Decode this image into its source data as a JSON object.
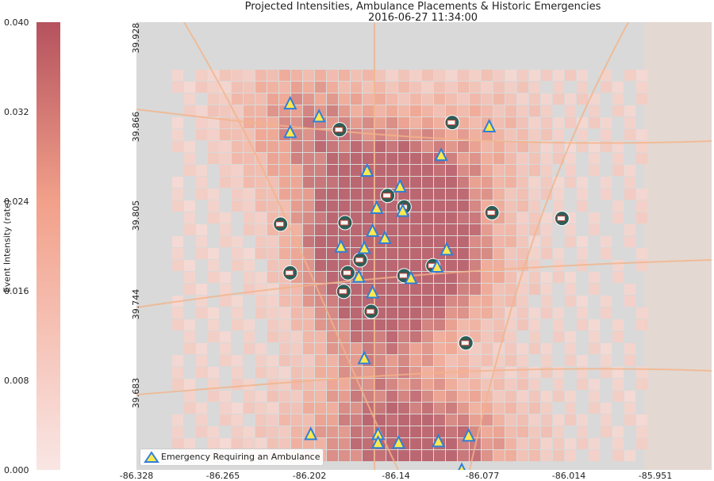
{
  "title_line1": "Projected Intensities, Ambulance Placements & Historic Emergencies",
  "title_line2": "2016-06-27 11:34:00",
  "colorbar": {
    "label": "Event Intensity (rate)",
    "ticks": [
      "0.000",
      "0.008",
      "0.016",
      "0.024",
      "0.032",
      "0.040"
    ],
    "color_low": "#f9e6e4",
    "color_mid": "#f2a08a",
    "color_high": "#b5525e"
  },
  "legend": {
    "label": "Emergency Requiring an Ambulance"
  },
  "chart_data": {
    "type": "heatmap",
    "title": "Projected Intensities, Ambulance Placements & Historic Emergencies",
    "subtitle": "2016-06-27 11:34:00",
    "x_ticks": [
      "-86.328",
      "-86.265",
      "-86.202",
      "-86.14",
      "-86.077",
      "-86.014",
      "-85.951"
    ],
    "y_ticks": [
      "39.928",
      "39.866",
      "39.805",
      "39.744",
      "39.683"
    ],
    "xlim": [
      -86.328,
      -85.951
    ],
    "ylim": [
      39.62,
      39.928
    ],
    "colorbar_range": [
      0.0,
      0.04
    ],
    "colorbar_label": "Event Intensity (rate)",
    "emergencies": [
      [
        -86.216,
        39.882
      ],
      [
        -86.195,
        39.873
      ],
      [
        -86.216,
        39.862
      ],
      [
        -86.106,
        39.846
      ],
      [
        -86.136,
        39.824
      ],
      [
        -86.134,
        39.807
      ],
      [
        -86.153,
        39.809
      ],
      [
        -86.156,
        39.793
      ],
      [
        -86.179,
        39.782
      ],
      [
        -86.147,
        39.788
      ],
      [
        -86.162,
        39.781
      ],
      [
        -86.102,
        39.78
      ],
      [
        -86.109,
        39.768
      ],
      [
        -86.128,
        39.76
      ],
      [
        -86.156,
        39.75
      ],
      [
        -86.166,
        39.761
      ],
      [
        -86.162,
        39.704
      ],
      [
        -86.201,
        39.651
      ],
      [
        -86.108,
        39.646
      ],
      [
        -86.137,
        39.645
      ],
      [
        -86.152,
        39.651
      ],
      [
        -86.152,
        39.645
      ],
      [
        -86.086,
        39.65
      ],
      [
        -86.091,
        39.626
      ],
      [
        -86.16,
        39.835
      ],
      [
        -86.071,
        39.866
      ]
    ],
    "ambulances": [
      [
        -86.18,
        39.864
      ],
      [
        -86.098,
        39.869
      ],
      [
        -86.088,
        39.715
      ],
      [
        -86.157,
        39.737
      ],
      [
        -86.223,
        39.798
      ],
      [
        -86.216,
        39.764
      ],
      [
        -86.174,
        39.764
      ],
      [
        -86.177,
        39.751
      ],
      [
        -86.133,
        39.762
      ],
      [
        -86.112,
        39.769
      ],
      [
        -86.133,
        39.81
      ],
      [
        -86.145,
        39.818
      ],
      [
        -86.069,
        39.806
      ],
      [
        -86.018,
        39.802
      ],
      [
        -86.176,
        39.799
      ],
      [
        -86.165,
        39.773
      ]
    ],
    "legend": [
      "Emergency Requiring an Ambulance"
    ]
  }
}
